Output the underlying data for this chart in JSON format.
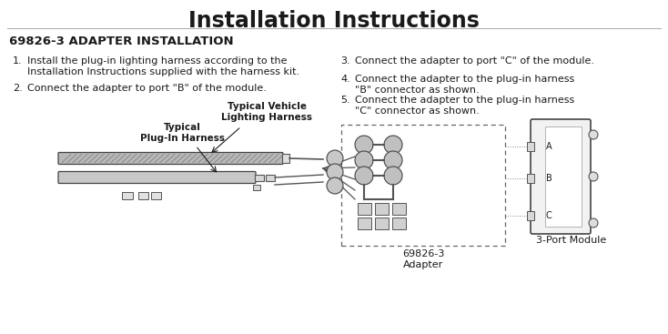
{
  "title": "Installation Instructions",
  "title_fontsize": 17,
  "section_heading": "69826-3 ADAPTER INSTALLATION",
  "section_heading_fontsize": 9.5,
  "bg_color": "#ffffff",
  "text_color": "#1a1a1a",
  "steps_left": [
    {
      "num": "1.",
      "text": "Install the plug-in lighting harness according to the\nInstallation Instructions supplied with the harness kit."
    },
    {
      "num": "2.",
      "text": "Connect the adapter to port \"B\" of the module."
    }
  ],
  "steps_right": [
    {
      "num": "3.",
      "text": "Connect the adapter to port \"C\" of the module."
    },
    {
      "num": "4.",
      "text": "Connect the adapter to the plug-in harness\n\"B\" connector as shown."
    },
    {
      "num": "5.",
      "text": "Connect the adapter to the plug-in harness\n\"C\" connector as shown."
    }
  ],
  "label_vehicle": "Typical Vehicle\nLighting Harness",
  "label_plugin": "Typical\nPlug-In Harness",
  "label_adapter": "69826-3\nAdapter",
  "label_module": "3-Port Module",
  "diagram_font_size": 7.5
}
